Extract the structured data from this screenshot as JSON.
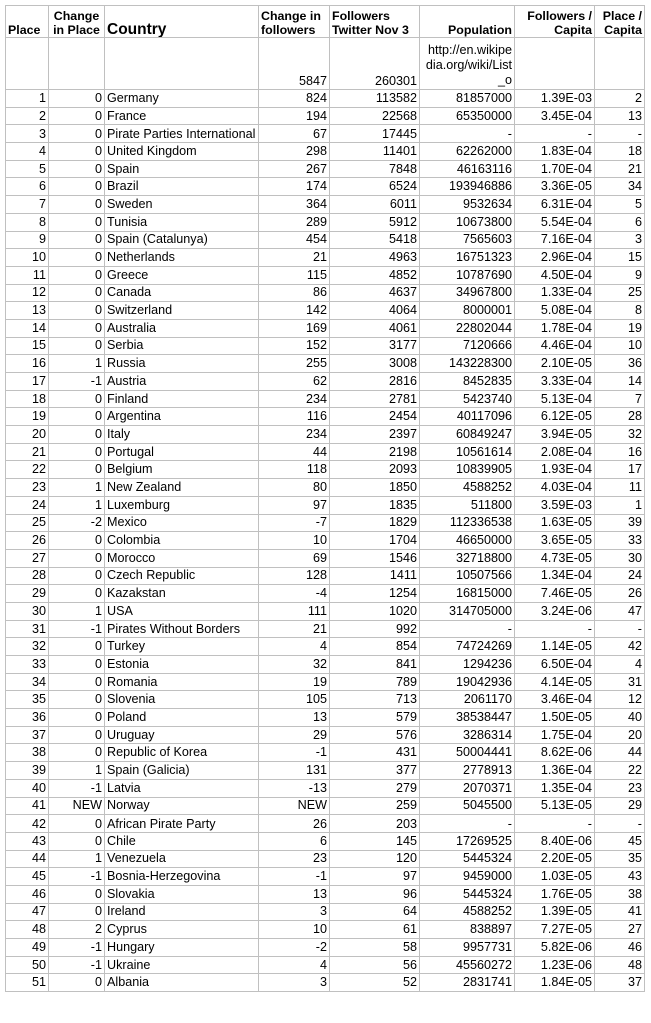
{
  "headers": {
    "place": "Place",
    "change_in_place": "Change in Place",
    "country": "Country",
    "change_in_followers": "Change in followers",
    "followers": "Followers Twitter Nov 3",
    "population": "Population",
    "followers_per_capita": "Followers / Capita",
    "place_per_capita": "Place / Capita"
  },
  "totals": {
    "change_in_followers": "5847",
    "followers": "260301",
    "population_source": "http://en.wikipedia.org/wiki/List_o"
  },
  "rows": [
    {
      "place": "1",
      "change": "0",
      "country": "Germany",
      "chg_followers": "824",
      "followers": "113582",
      "population": "81857000",
      "per_capita": "1.39E-03",
      "place_capita": "2"
    },
    {
      "place": "2",
      "change": "0",
      "country": "France",
      "chg_followers": "194",
      "followers": "22568",
      "population": "65350000",
      "per_capita": "3.45E-04",
      "place_capita": "13"
    },
    {
      "place": "3",
      "change": "0",
      "country": "Pirate Parties International",
      "chg_followers": "67",
      "followers": "17445",
      "population": "-",
      "per_capita": "-",
      "place_capita": "-"
    },
    {
      "place": "4",
      "change": "0",
      "country": "United Kingdom",
      "chg_followers": "298",
      "followers": "11401",
      "population": "62262000",
      "per_capita": "1.83E-04",
      "place_capita": "18"
    },
    {
      "place": "5",
      "change": "0",
      "country": "Spain",
      "chg_followers": "267",
      "followers": "7848",
      "population": "46163116",
      "per_capita": "1.70E-04",
      "place_capita": "21"
    },
    {
      "place": "6",
      "change": "0",
      "country": "Brazil",
      "chg_followers": "174",
      "followers": "6524",
      "population": "193946886",
      "per_capita": "3.36E-05",
      "place_capita": "34"
    },
    {
      "place": "7",
      "change": "0",
      "country": "Sweden",
      "chg_followers": "364",
      "followers": "6011",
      "population": "9532634",
      "per_capita": "6.31E-04",
      "place_capita": "5"
    },
    {
      "place": "8",
      "change": "0",
      "country": "Tunisia",
      "chg_followers": "289",
      "followers": "5912",
      "population": "10673800",
      "per_capita": "5.54E-04",
      "place_capita": "6"
    },
    {
      "place": "9",
      "change": "0",
      "country": "Spain (Catalunya)",
      "chg_followers": "454",
      "followers": "5418",
      "population": "7565603",
      "per_capita": "7.16E-04",
      "place_capita": "3"
    },
    {
      "place": "10",
      "change": "0",
      "country": "Netherlands",
      "chg_followers": "21",
      "followers": "4963",
      "population": "16751323",
      "per_capita": "2.96E-04",
      "place_capita": "15"
    },
    {
      "place": "11",
      "change": "0",
      "country": "Greece",
      "chg_followers": "115",
      "followers": "4852",
      "population": "10787690",
      "per_capita": "4.50E-04",
      "place_capita": "9"
    },
    {
      "place": "12",
      "change": "0",
      "country": "Canada",
      "chg_followers": "86",
      "followers": "4637",
      "population": "34967800",
      "per_capita": "1.33E-04",
      "place_capita": "25"
    },
    {
      "place": "13",
      "change": "0",
      "country": "Switzerland",
      "chg_followers": "142",
      "followers": "4064",
      "population": "8000001",
      "per_capita": "5.08E-04",
      "place_capita": "8"
    },
    {
      "place": "14",
      "change": "0",
      "country": "Australia",
      "chg_followers": "169",
      "followers": "4061",
      "population": "22802044",
      "per_capita": "1.78E-04",
      "place_capita": "19"
    },
    {
      "place": "15",
      "change": "0",
      "country": "Serbia",
      "chg_followers": "152",
      "followers": "3177",
      "population": "7120666",
      "per_capita": "4.46E-04",
      "place_capita": "10"
    },
    {
      "place": "16",
      "change": "1",
      "country": "Russia",
      "chg_followers": "255",
      "followers": "3008",
      "population": "143228300",
      "per_capita": "2.10E-05",
      "place_capita": "36"
    },
    {
      "place": "17",
      "change": "-1",
      "country": "Austria",
      "chg_followers": "62",
      "followers": "2816",
      "population": "8452835",
      "per_capita": "3.33E-04",
      "place_capita": "14"
    },
    {
      "place": "18",
      "change": "0",
      "country": "Finland",
      "chg_followers": "234",
      "followers": "2781",
      "population": "5423740",
      "per_capita": "5.13E-04",
      "place_capita": "7"
    },
    {
      "place": "19",
      "change": "0",
      "country": "Argentina",
      "chg_followers": "116",
      "followers": "2454",
      "population": "40117096",
      "per_capita": "6.12E-05",
      "place_capita": "28"
    },
    {
      "place": "20",
      "change": "0",
      "country": "Italy",
      "chg_followers": "234",
      "followers": "2397",
      "population": "60849247",
      "per_capita": "3.94E-05",
      "place_capita": "32"
    },
    {
      "place": "21",
      "change": "0",
      "country": "Portugal",
      "chg_followers": "44",
      "followers": "2198",
      "population": "10561614",
      "per_capita": "2.08E-04",
      "place_capita": "16"
    },
    {
      "place": "22",
      "change": "0",
      "country": "Belgium",
      "chg_followers": "118",
      "followers": "2093",
      "population": "10839905",
      "per_capita": "1.93E-04",
      "place_capita": "17"
    },
    {
      "place": "23",
      "change": "1",
      "country": "New Zealand",
      "chg_followers": "80",
      "followers": "1850",
      "population": "4588252",
      "per_capita": "4.03E-04",
      "place_capita": "11"
    },
    {
      "place": "24",
      "change": "1",
      "country": "Luxemburg",
      "chg_followers": "97",
      "followers": "1835",
      "population": "511800",
      "per_capita": "3.59E-03",
      "place_capita": "1"
    },
    {
      "place": "25",
      "change": "-2",
      "country": "Mexico",
      "chg_followers": "-7",
      "followers": "1829",
      "population": "112336538",
      "per_capita": "1.63E-05",
      "place_capita": "39"
    },
    {
      "place": "26",
      "change": "0",
      "country": "Colombia",
      "chg_followers": "10",
      "followers": "1704",
      "population": "46650000",
      "per_capita": "3.65E-05",
      "place_capita": "33"
    },
    {
      "place": "27",
      "change": "0",
      "country": "Morocco",
      "chg_followers": "69",
      "followers": "1546",
      "population": "32718800",
      "per_capita": "4.73E-05",
      "place_capita": "30"
    },
    {
      "place": "28",
      "change": "0",
      "country": "Czech Republic",
      "chg_followers": "128",
      "followers": "1411",
      "population": "10507566",
      "per_capita": "1.34E-04",
      "place_capita": "24"
    },
    {
      "place": "29",
      "change": "0",
      "country": "Kazakstan",
      "chg_followers": "-4",
      "followers": "1254",
      "population": "16815000",
      "per_capita": "7.46E-05",
      "place_capita": "26"
    },
    {
      "place": "30",
      "change": "1",
      "country": "USA",
      "chg_followers": "111",
      "followers": "1020",
      "population": "314705000",
      "per_capita": "3.24E-06",
      "place_capita": "47"
    },
    {
      "place": "31",
      "change": "-1",
      "country": "Pirates Without Borders",
      "chg_followers": "21",
      "followers": "992",
      "population": "-",
      "per_capita": "-",
      "place_capita": "-"
    },
    {
      "place": "32",
      "change": "0",
      "country": "Turkey",
      "chg_followers": "4",
      "followers": "854",
      "population": "74724269",
      "per_capita": "1.14E-05",
      "place_capita": "42"
    },
    {
      "place": "33",
      "change": "0",
      "country": "Estonia",
      "chg_followers": "32",
      "followers": "841",
      "population": "1294236",
      "per_capita": "6.50E-04",
      "place_capita": "4"
    },
    {
      "place": "34",
      "change": "0",
      "country": "Romania",
      "chg_followers": "19",
      "followers": "789",
      "population": "19042936",
      "per_capita": "4.14E-05",
      "place_capita": "31"
    },
    {
      "place": "35",
      "change": "0",
      "country": "Slovenia",
      "chg_followers": "105",
      "followers": "713",
      "population": "2061170",
      "per_capita": "3.46E-04",
      "place_capita": "12"
    },
    {
      "place": "36",
      "change": "0",
      "country": "Poland",
      "chg_followers": "13",
      "followers": "579",
      "population": "38538447",
      "per_capita": "1.50E-05",
      "place_capita": "40"
    },
    {
      "place": "37",
      "change": "0",
      "country": "Uruguay",
      "chg_followers": "29",
      "followers": "576",
      "population": "3286314",
      "per_capita": "1.75E-04",
      "place_capita": "20"
    },
    {
      "place": "38",
      "change": "0",
      "country": "Republic of Korea",
      "chg_followers": "-1",
      "followers": "431",
      "population": "50004441",
      "per_capita": "8.62E-06",
      "place_capita": "44"
    },
    {
      "place": "39",
      "change": "1",
      "country": "Spain (Galicia)",
      "chg_followers": "131",
      "followers": "377",
      "population": "2778913",
      "per_capita": "1.36E-04",
      "place_capita": "22"
    },
    {
      "place": "40",
      "change": "-1",
      "country": "Latvia",
      "chg_followers": "-13",
      "followers": "279",
      "population": "2070371",
      "per_capita": "1.35E-04",
      "place_capita": "23"
    },
    {
      "place": "41",
      "change": "NEW",
      "country": "Norway",
      "chg_followers": "NEW",
      "followers": "259",
      "population": "5045500",
      "per_capita": "5.13E-05",
      "place_capita": "29"
    },
    {
      "place": "42",
      "change": "0",
      "country": "African Pirate Party",
      "chg_followers": "26",
      "followers": "203",
      "population": "-",
      "per_capita": "-",
      "place_capita": "-"
    },
    {
      "place": "43",
      "change": "0",
      "country": "Chile",
      "chg_followers": "6",
      "followers": "145",
      "population": "17269525",
      "per_capita": "8.40E-06",
      "place_capita": "45"
    },
    {
      "place": "44",
      "change": "1",
      "country": "Venezuela",
      "chg_followers": "23",
      "followers": "120",
      "population": "5445324",
      "per_capita": "2.20E-05",
      "place_capita": "35"
    },
    {
      "place": "45",
      "change": "-1",
      "country": "Bosnia-Herzegovina",
      "chg_followers": "-1",
      "followers": "97",
      "population": "9459000",
      "per_capita": "1.03E-05",
      "place_capita": "43"
    },
    {
      "place": "46",
      "change": "0",
      "country": "Slovakia",
      "chg_followers": "13",
      "followers": "96",
      "population": "5445324",
      "per_capita": "1.76E-05",
      "place_capita": "38"
    },
    {
      "place": "47",
      "change": "0",
      "country": "Ireland",
      "chg_followers": "3",
      "followers": "64",
      "population": "4588252",
      "per_capita": "1.39E-05",
      "place_capita": "41"
    },
    {
      "place": "48",
      "change": "2",
      "country": "Cyprus",
      "chg_followers": "10",
      "followers": "61",
      "population": "838897",
      "per_capita": "7.27E-05",
      "place_capita": "27"
    },
    {
      "place": "49",
      "change": "-1",
      "country": "Hungary",
      "chg_followers": "-2",
      "followers": "58",
      "population": "9957731",
      "per_capita": "5.82E-06",
      "place_capita": "46"
    },
    {
      "place": "50",
      "change": "-1",
      "country": "Ukraine",
      "chg_followers": "4",
      "followers": "56",
      "population": "45560272",
      "per_capita": "1.23E-06",
      "place_capita": "48"
    },
    {
      "place": "51",
      "change": "0",
      "country": "Albania",
      "chg_followers": "3",
      "followers": "52",
      "population": "2831741",
      "per_capita": "1.84E-05",
      "place_capita": "37"
    }
  ]
}
